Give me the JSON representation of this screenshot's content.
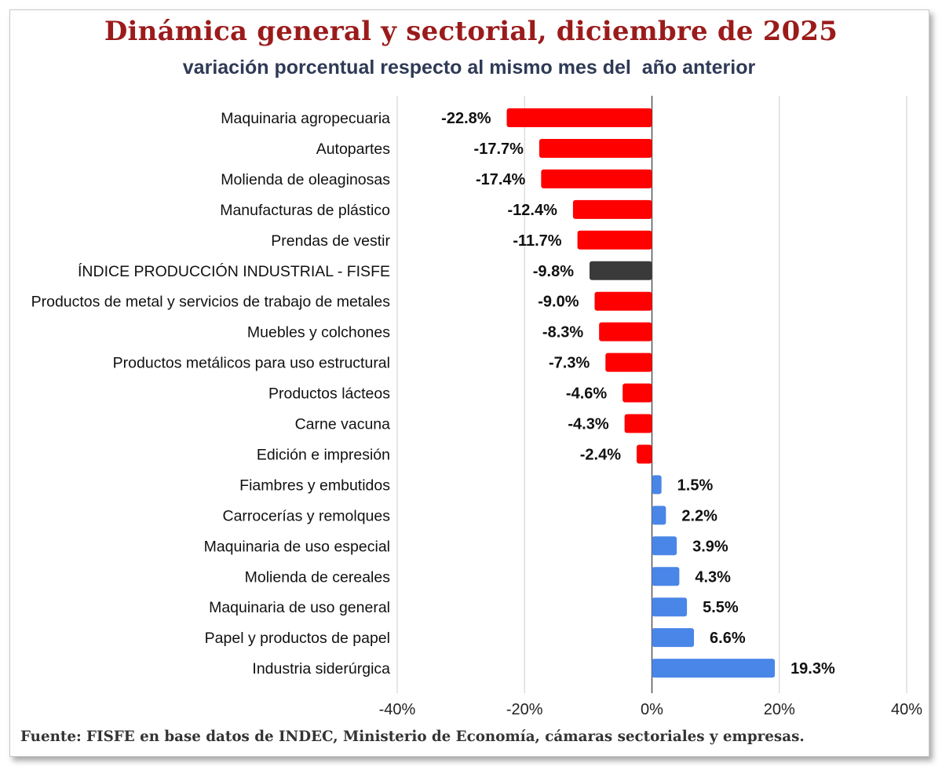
{
  "title": "Dinámica general y sectorial, diciembre de 2025",
  "subtitle": "variación porcentual respecto al mismo mes del  año anterior",
  "source": "Fuente: FISFE en base datos de INDEC, Ministerio de Economía, cámaras sectoriales y empresas.",
  "colors": {
    "title": "#9b1b1b",
    "subtitle": "#2f3a55",
    "negative": "#ff0000",
    "index": "#3a3a3a",
    "positive": "#4a86e8",
    "grid": "#d9d9d9",
    "zero_axis": "#555555"
  },
  "chart_data": {
    "type": "bar",
    "orientation": "horizontal",
    "title": "Dinámica general y sectorial, diciembre de 2025",
    "subtitle": "variación porcentual respecto al mismo mes del  año anterior",
    "categories": [
      "Maquinaria agropecuaria",
      "Autopartes",
      "Molienda de oleaginosas",
      "Manufacturas de plástico",
      "Prendas de vestir",
      "ÍNDICE PRODUCCIÓN INDUSTRIAL - FISFE",
      "Productos de metal y servicios de trabajo de metales",
      "Muebles y colchones",
      "Productos metálicos para uso estructural",
      "Productos lácteos",
      "Carne vacuna",
      "Edición e impresión",
      "Fiambres y embutidos",
      "Carrocerías y remolques",
      "Maquinaria de uso especial",
      "Molienda de cereales",
      "Maquinaria de uso general",
      "Papel y productos de papel",
      "Industria siderúrgica"
    ],
    "values": [
      -22.8,
      -17.7,
      -17.4,
      -12.4,
      -11.7,
      -9.8,
      -9.0,
      -8.3,
      -7.3,
      -4.6,
      -4.3,
      -2.4,
      1.5,
      2.2,
      3.9,
      4.3,
      5.5,
      6.6,
      19.3
    ],
    "value_labels": [
      "-22.8%",
      "-17.7%",
      "-17.4%",
      "-12.4%",
      "-11.7%",
      "-9.8%",
      "-9.0%",
      "-8.3%",
      "-7.3%",
      "-4.6%",
      "-4.3%",
      "-2.4%",
      "1.5%",
      "2.2%",
      "3.9%",
      "4.3%",
      "5.5%",
      "6.6%",
      "19.3%"
    ],
    "highlight_category": "ÍNDICE PRODUCCIÓN INDUSTRIAL - FISFE",
    "xlim": [
      -40,
      40
    ],
    "xticks": [
      -40,
      -20,
      0,
      20,
      40
    ],
    "xtick_labels": [
      "-40%",
      "-20%",
      "0%",
      "20%",
      "40%"
    ],
    "grid": true,
    "legend": false
  }
}
